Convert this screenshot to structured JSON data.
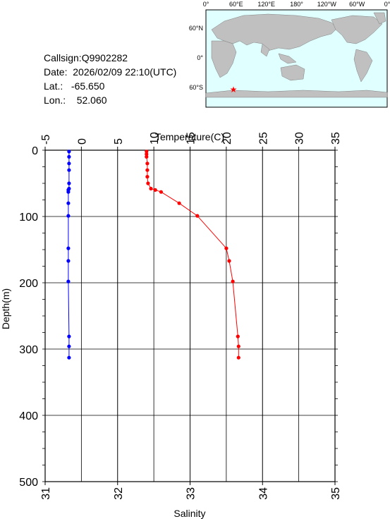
{
  "station": {
    "callsign_label": "Callsign:",
    "callsign": "Q9902282",
    "date_label": "Date:",
    "date": "2026/02/09 22:10(UTC)",
    "lat_label": "Lat.:",
    "lat": "-65.650",
    "lon_label": "Lon.:",
    "lon": "52.060"
  },
  "map": {
    "top_labels": [
      "0°",
      "60°E",
      "120°E",
      "180°",
      "120°W",
      "60°W",
      "0°"
    ],
    "right_labels": [
      "60°N",
      "0°",
      "60°S"
    ],
    "marker_color": "#ff0000",
    "land_color": "#c0c0c0",
    "ocean_color": "#e0ffff"
  },
  "colors": {
    "temperature": "#ff0000",
    "salinity": "#0000ff"
  },
  "chart_data": {
    "type": "line",
    "title": "",
    "ylabel": "Depth(m)",
    "ylim": [
      500,
      0
    ],
    "y_ticks": [
      "0",
      "100",
      "200",
      "300",
      "400",
      "500"
    ],
    "temperature_axis": {
      "label": "Temperature(C)",
      "range": [
        -5,
        35
      ],
      "ticks": [
        "-5",
        "0",
        "5",
        "10",
        "15",
        "20",
        "25",
        "30",
        "35"
      ]
    },
    "salinity_axis": {
      "label": "Salinity",
      "range": [
        31,
        35
      ],
      "ticks": [
        "31",
        "32",
        "33",
        "34",
        "35"
      ]
    },
    "grid": true,
    "series": [
      {
        "key": "temperature",
        "color": "#ff0000",
        "points": [
          {
            "depth": 2,
            "value": 9.0
          },
          {
            "depth": 6,
            "value": 9.0
          },
          {
            "depth": 10,
            "value": 9.0
          },
          {
            "depth": 20,
            "value": 9.1
          },
          {
            "depth": 30,
            "value": 9.1
          },
          {
            "depth": 40,
            "value": 9.1
          },
          {
            "depth": 50,
            "value": 9.2
          },
          {
            "depth": 58,
            "value": 9.6
          },
          {
            "depth": 60,
            "value": 10.2
          },
          {
            "depth": 63,
            "value": 11.0
          },
          {
            "depth": 80,
            "value": 13.5
          },
          {
            "depth": 99,
            "value": 16.0
          },
          {
            "depth": 148,
            "value": 20.0
          },
          {
            "depth": 167,
            "value": 20.4
          },
          {
            "depth": 198,
            "value": 20.9
          },
          {
            "depth": 281,
            "value": 21.6
          },
          {
            "depth": 296,
            "value": 21.7
          },
          {
            "depth": 313,
            "value": 21.7
          }
        ]
      },
      {
        "key": "salinity",
        "color": "#0000ff",
        "points": [
          {
            "depth": 2,
            "value": 31.33
          },
          {
            "depth": 10,
            "value": 31.33
          },
          {
            "depth": 20,
            "value": 31.33
          },
          {
            "depth": 30,
            "value": 31.33
          },
          {
            "depth": 50,
            "value": 31.33
          },
          {
            "depth": 58,
            "value": 31.33
          },
          {
            "depth": 60,
            "value": 31.32
          },
          {
            "depth": 63,
            "value": 31.32
          },
          {
            "depth": 80,
            "value": 31.32
          },
          {
            "depth": 99,
            "value": 31.32
          },
          {
            "depth": 148,
            "value": 31.32
          },
          {
            "depth": 167,
            "value": 31.32
          },
          {
            "depth": 198,
            "value": 31.32
          },
          {
            "depth": 281,
            "value": 31.33
          },
          {
            "depth": 296,
            "value": 31.33
          },
          {
            "depth": 313,
            "value": 31.33
          }
        ]
      }
    ]
  }
}
